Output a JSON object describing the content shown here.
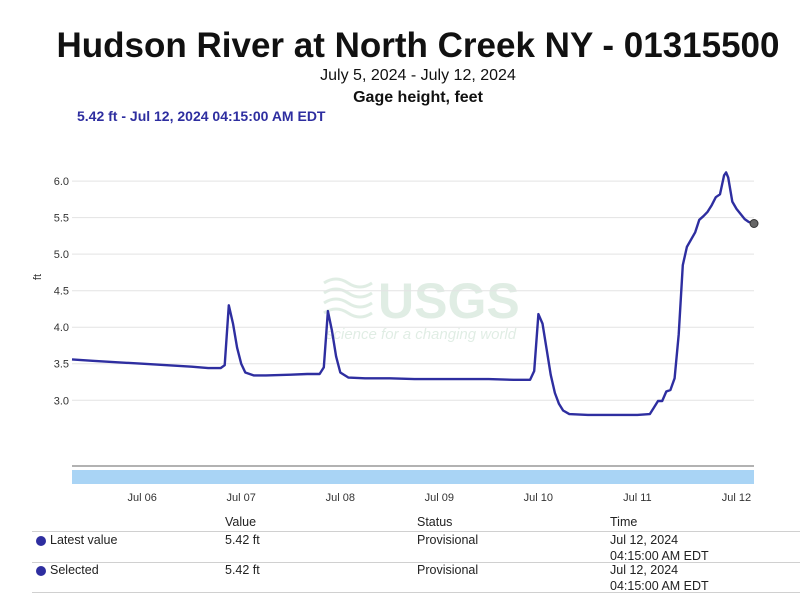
{
  "header": {
    "title": "Hudson River at North Creek NY - 01315500",
    "subtitle": "July 5, 2024 - July 12, 2024",
    "parameter": "Gage height, feet",
    "readout": "5.42 ft - Jul 12, 2024 04:15:00 AM EDT"
  },
  "watermark": {
    "logo": "USGS",
    "tagline": "science for a changing world"
  },
  "chart_data": {
    "type": "line",
    "title": "Hudson River at North Creek NY - 01315500",
    "subtitle": "July 5, 2024 - July 12, 2024",
    "ylabel": "ft",
    "xlabel": "",
    "ylim": [
      2.1,
      6.7
    ],
    "xlim": [
      "2024-07-05T07:00",
      "2024-07-12T04:15"
    ],
    "x_ticks": [
      {
        "x": "2024-07-06T00:00",
        "label": "Jul 06"
      },
      {
        "x": "2024-07-07T00:00",
        "label": "Jul 07"
      },
      {
        "x": "2024-07-08T00:00",
        "label": "Jul 08"
      },
      {
        "x": "2024-07-09T00:00",
        "label": "Jul 09"
      },
      {
        "x": "2024-07-10T00:00",
        "label": "Jul 10"
      },
      {
        "x": "2024-07-11T00:00",
        "label": "Jul 11"
      },
      {
        "x": "2024-07-12T00:00",
        "label": "Jul 12"
      }
    ],
    "y_ticks": [
      "3.0",
      "3.5",
      "4.0",
      "4.5",
      "5.0",
      "5.5",
      "6.0"
    ],
    "grid": true,
    "line_color": "#2e2ea0",
    "navigator_color": "#a9d4f5",
    "series": [
      {
        "points": [
          [
            "2024-07-05T07:00",
            3.56
          ],
          [
            "2024-07-05T12:00",
            3.54
          ],
          [
            "2024-07-05T18:00",
            3.52
          ],
          [
            "2024-07-06T00:00",
            3.5
          ],
          [
            "2024-07-06T06:00",
            3.48
          ],
          [
            "2024-07-06T12:00",
            3.46
          ],
          [
            "2024-07-06T16:00",
            3.44
          ],
          [
            "2024-07-06T19:00",
            3.44
          ],
          [
            "2024-07-06T20:00",
            3.48
          ],
          [
            "2024-07-06T21:00",
            4.3
          ],
          [
            "2024-07-06T22:00",
            4.05
          ],
          [
            "2024-07-06T23:00",
            3.72
          ],
          [
            "2024-07-07T00:00",
            3.5
          ],
          [
            "2024-07-07T01:00",
            3.38
          ],
          [
            "2024-07-07T03:00",
            3.34
          ],
          [
            "2024-07-07T06:00",
            3.34
          ],
          [
            "2024-07-07T12:00",
            3.35
          ],
          [
            "2024-07-07T16:00",
            3.36
          ],
          [
            "2024-07-07T19:00",
            3.36
          ],
          [
            "2024-07-07T20:00",
            3.45
          ],
          [
            "2024-07-07T21:00",
            4.22
          ],
          [
            "2024-07-07T22:00",
            3.95
          ],
          [
            "2024-07-07T23:00",
            3.6
          ],
          [
            "2024-07-08T00:00",
            3.38
          ],
          [
            "2024-07-08T02:00",
            3.31
          ],
          [
            "2024-07-08T06:00",
            3.3
          ],
          [
            "2024-07-08T12:00",
            3.3
          ],
          [
            "2024-07-08T18:00",
            3.29
          ],
          [
            "2024-07-09T00:00",
            3.29
          ],
          [
            "2024-07-09T12:00",
            3.29
          ],
          [
            "2024-07-09T18:00",
            3.28
          ],
          [
            "2024-07-09T22:00",
            3.28
          ],
          [
            "2024-07-09T23:00",
            3.4
          ],
          [
            "2024-07-10T00:00",
            4.18
          ],
          [
            "2024-07-10T01:00",
            4.05
          ],
          [
            "2024-07-10T02:00",
            3.7
          ],
          [
            "2024-07-10T03:00",
            3.35
          ],
          [
            "2024-07-10T04:00",
            3.1
          ],
          [
            "2024-07-10T05:00",
            2.95
          ],
          [
            "2024-07-10T06:00",
            2.86
          ],
          [
            "2024-07-10T07:30",
            2.81
          ],
          [
            "2024-07-10T12:00",
            2.8
          ],
          [
            "2024-07-10T18:00",
            2.8
          ],
          [
            "2024-07-11T00:00",
            2.8
          ],
          [
            "2024-07-11T03:00",
            2.81
          ],
          [
            "2024-07-11T04:00",
            2.9
          ],
          [
            "2024-07-11T05:00",
            2.99
          ],
          [
            "2024-07-11T06:00",
            2.99
          ],
          [
            "2024-07-11T07:00",
            3.12
          ],
          [
            "2024-07-11T08:00",
            3.14
          ],
          [
            "2024-07-11T09:00",
            3.3
          ],
          [
            "2024-07-11T10:00",
            3.9
          ],
          [
            "2024-07-11T11:00",
            4.85
          ],
          [
            "2024-07-11T12:00",
            5.1
          ],
          [
            "2024-07-11T14:00",
            5.3
          ],
          [
            "2024-07-11T15:00",
            5.47
          ],
          [
            "2024-07-11T16:00",
            5.52
          ],
          [
            "2024-07-11T17:00",
            5.58
          ],
          [
            "2024-07-11T18:00",
            5.67
          ],
          [
            "2024-07-11T19:00",
            5.78
          ],
          [
            "2024-07-11T20:00",
            5.82
          ],
          [
            "2024-07-11T21:00",
            6.08
          ],
          [
            "2024-07-11T21:30",
            6.12
          ],
          [
            "2024-07-11T22:00",
            6.05
          ],
          [
            "2024-07-11T23:00",
            5.72
          ],
          [
            "2024-07-12T00:00",
            5.62
          ],
          [
            "2024-07-12T01:00",
            5.55
          ],
          [
            "2024-07-12T02:00",
            5.48
          ],
          [
            "2024-07-12T03:00",
            5.44
          ],
          [
            "2024-07-12T04:15",
            5.42
          ]
        ]
      }
    ]
  },
  "table": {
    "headers": {
      "value": "Value",
      "status": "Status",
      "time": "Time"
    },
    "rows": [
      {
        "label": "Latest value",
        "value": "5.42 ft",
        "status": "Provisional",
        "time_line1": "Jul 12, 2024",
        "time_line2": "04:15:00 AM EDT"
      },
      {
        "label": "Selected",
        "value": "5.42 ft",
        "status": "Provisional",
        "time_line1": "Jul 12, 2024",
        "time_line2": "04:15:00 AM EDT"
      }
    ]
  }
}
